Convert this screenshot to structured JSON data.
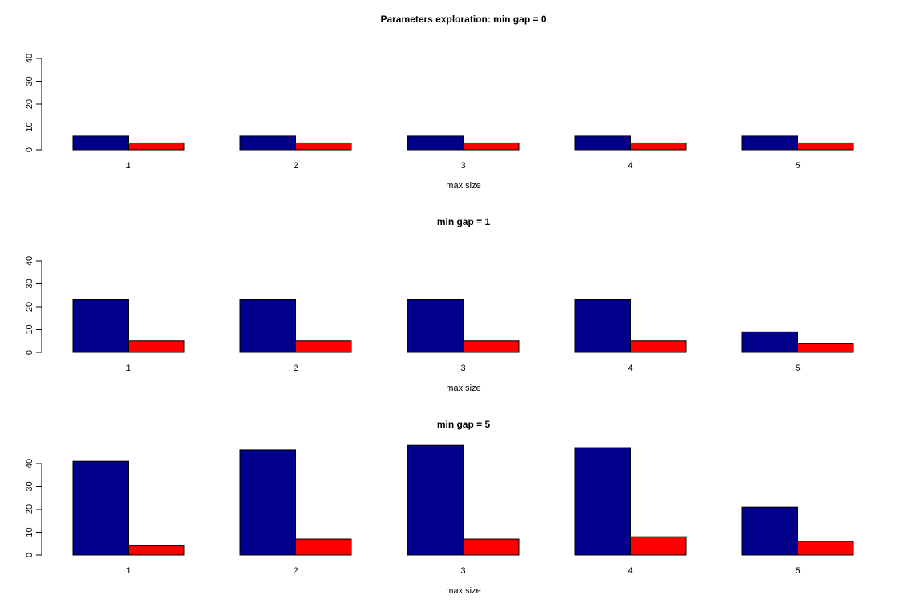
{
  "chart_data": [
    {
      "type": "bar",
      "title": "Parameters exploration: min gap = 0",
      "xlabel": "max size",
      "categories": [
        "1",
        "2",
        "3",
        "4",
        "5"
      ],
      "series": [
        {
          "color": "#00008b",
          "values": [
            6,
            6,
            6,
            6,
            6
          ]
        },
        {
          "color": "#ff0000",
          "values": [
            3,
            3,
            3,
            3,
            3
          ]
        }
      ],
      "ylim": [
        0,
        48
      ],
      "yticks": [
        0,
        10,
        20,
        30,
        40
      ]
    },
    {
      "type": "bar",
      "title": "min gap = 1",
      "xlabel": "max size",
      "categories": [
        "1",
        "2",
        "3",
        "4",
        "5"
      ],
      "series": [
        {
          "color": "#00008b",
          "values": [
            23,
            23,
            23,
            23,
            9
          ]
        },
        {
          "color": "#ff0000",
          "values": [
            5,
            5,
            5,
            5,
            4
          ]
        }
      ],
      "ylim": [
        0,
        48
      ],
      "yticks": [
        0,
        10,
        20,
        30,
        40
      ]
    },
    {
      "type": "bar",
      "title": "min gap = 5",
      "xlabel": "max size",
      "categories": [
        "1",
        "2",
        "3",
        "4",
        "5"
      ],
      "series": [
        {
          "color": "#00008b",
          "values": [
            41,
            46,
            48,
            47,
            21
          ]
        },
        {
          "color": "#ff0000",
          "values": [
            4,
            7,
            7,
            8,
            6
          ]
        }
      ],
      "ylim": [
        0,
        48
      ],
      "yticks": [
        0,
        10,
        20,
        30,
        40
      ]
    }
  ]
}
